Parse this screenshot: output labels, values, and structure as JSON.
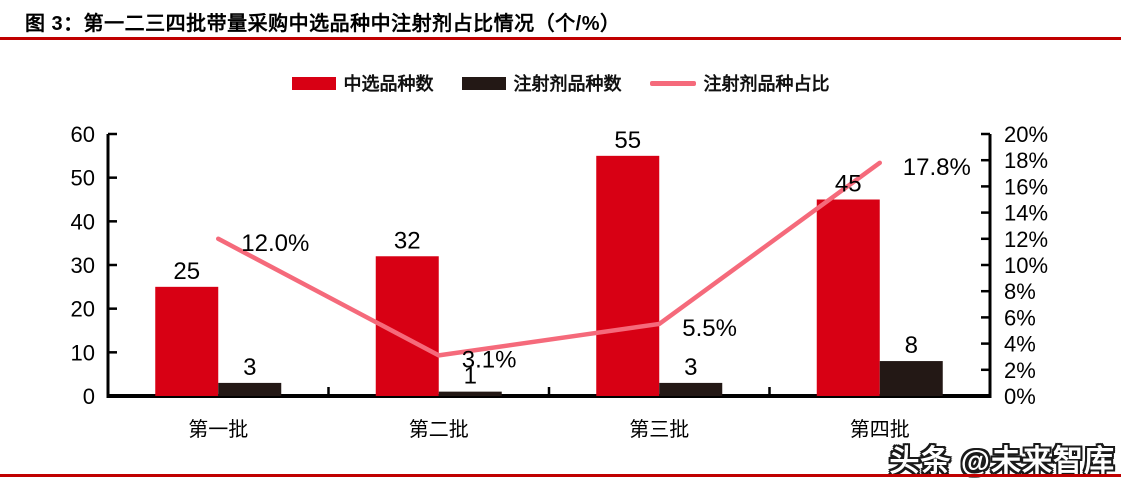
{
  "title": "图 3：第一二三四批带量采购中选品种中注射剂占比情况（个/%）",
  "watermark": "头条 @未来智库",
  "colors": {
    "rule": "#C00000",
    "axis": "#000000",
    "bar_selected": "#D80014",
    "bar_injection": "#231815",
    "line_share": "#F56A7B",
    "label_text": "#000000"
  },
  "legend": [
    {
      "label": "中选品种数",
      "type": "bar",
      "color": "#D80014"
    },
    {
      "label": "注射剂品种数",
      "type": "bar",
      "color": "#231815"
    },
    {
      "label": "注射剂品种占比",
      "type": "line",
      "color": "#F56A7B"
    }
  ],
  "chart_data": {
    "type": "bar+line",
    "title": "第一二三四批带量采购中选品种中注射剂占比情况（个/%）",
    "categories": [
      "第一批",
      "第二批",
      "第三批",
      "第四批"
    ],
    "series": [
      {
        "name": "中选品种数",
        "type": "bar",
        "axis": "left",
        "color": "#D80014",
        "values": [
          25,
          32,
          55,
          45
        ],
        "labels": [
          "25",
          "32",
          "55",
          "45"
        ]
      },
      {
        "name": "注射剂品种数",
        "type": "bar",
        "axis": "left",
        "color": "#231815",
        "values": [
          3,
          1,
          3,
          8
        ],
        "labels": [
          "3",
          "1",
          "3",
          "8"
        ]
      },
      {
        "name": "注射剂品种占比",
        "type": "line",
        "axis": "right",
        "color": "#F56A7B",
        "values": [
          12.0,
          3.1,
          5.5,
          17.8
        ],
        "labels": [
          "12.0%",
          "3.1%",
          "5.5%",
          "17.8%"
        ]
      }
    ],
    "left_axis": {
      "min": 0,
      "max": 60,
      "step": 10,
      "ticks": [
        "0",
        "10",
        "20",
        "30",
        "40",
        "50",
        "60"
      ]
    },
    "right_axis": {
      "min": 0,
      "max": 20,
      "step": 2,
      "ticks": [
        "0%",
        "2%",
        "4%",
        "6%",
        "8%",
        "10%",
        "12%",
        "14%",
        "16%",
        "18%",
        "20%"
      ]
    },
    "grid": false,
    "legend_position": "top"
  }
}
